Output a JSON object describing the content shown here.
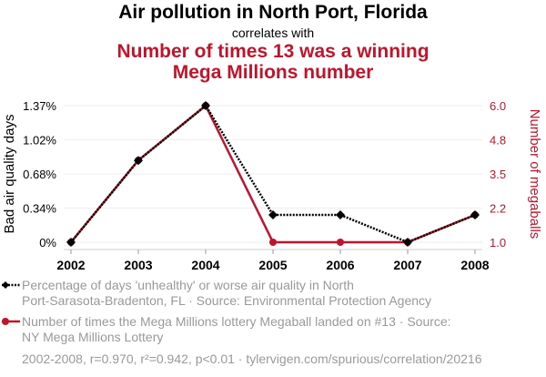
{
  "header": {
    "title": "Air pollution in North Port, Florida",
    "subtitle": "correlates with",
    "title2_line1": "Number of times 13 was a winning",
    "title2_line2": "Mega Millions number"
  },
  "colors": {
    "series1": "#000000",
    "series2": "#c0142d",
    "grid": "#eeeeee",
    "legend_text": "#999999"
  },
  "chart_data": {
    "type": "line",
    "x": [
      2002,
      2003,
      2004,
      2005,
      2006,
      2007,
      2008
    ],
    "series": [
      {
        "name": "Percentage of days 'unhealthy' or worse air quality in North Port-Sarasota-Bradenton, FL",
        "axis": "left",
        "values": [
          0,
          0.82,
          1.37,
          0.274,
          0.274,
          0,
          0.274
        ]
      },
      {
        "name": "Number of times the Mega Millions lottery Megaball landed on #13",
        "axis": "right",
        "values": [
          1,
          4,
          6,
          1,
          1,
          1,
          2
        ]
      }
    ],
    "ylabel_left": "Bad air quality days",
    "ylabel_right": "Number of megaballs",
    "ylim_left": [
      0,
      1.37
    ],
    "ylim_right": [
      1,
      6
    ],
    "yticks_left": [
      "0%",
      "0.34%",
      "0.68%",
      "1.02%",
      "1.37%"
    ],
    "yticks_right": [
      "1.0",
      "2.2",
      "3.5",
      "4.8",
      "6.0"
    ],
    "xticks": [
      "2002",
      "2003",
      "2004",
      "2005",
      "2006",
      "2007",
      "2008"
    ],
    "grid": true
  },
  "legend": {
    "item1_line1": "Percentage of days 'unhealthy' or worse air quality in North",
    "item1_line2": "Port-Sarasota-Bradenton, FL · Source: Environmental Protection Agency",
    "item2_line1": "Number of times the Mega Millions lottery Megaball landed on #13 · Source:",
    "item2_line2": "NY Mega Millions Lottery"
  },
  "footer": "2002-2008, r=0.970, r²=0.942, p<0.01 · tylervigen.com/spurious/correlation/20216"
}
